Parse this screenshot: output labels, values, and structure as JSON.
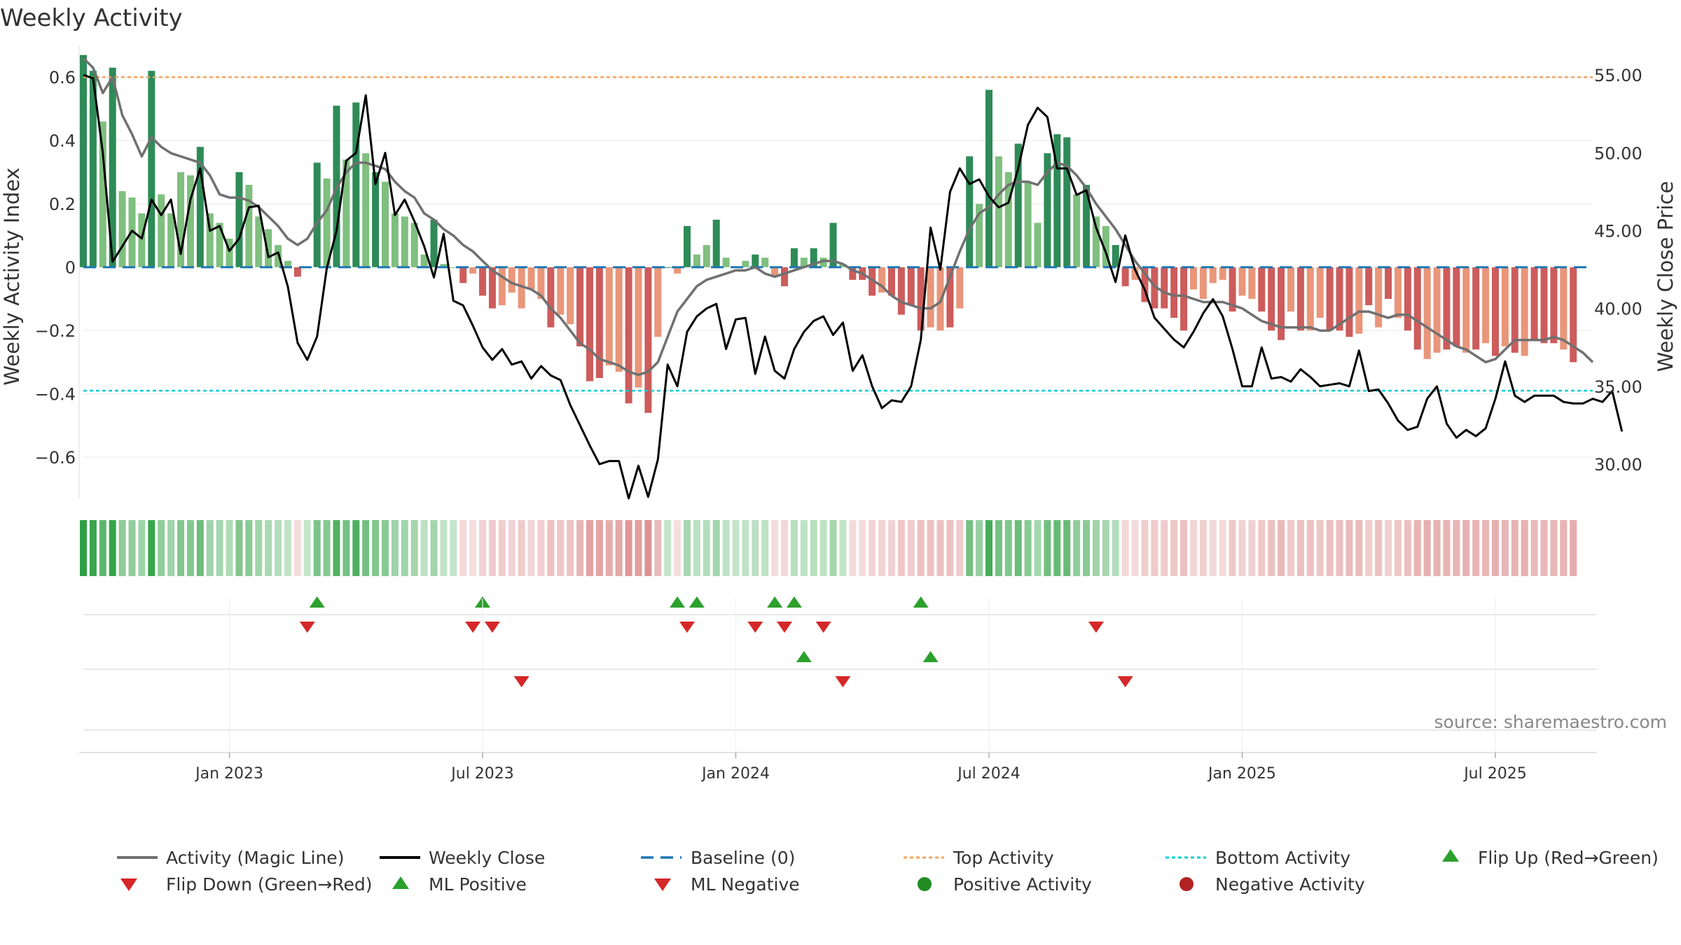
{
  "title": "Weekly Activity",
  "source": "source: sharemaestro.com",
  "colors": {
    "strong_green": "#2e8b57",
    "light_green": "#7fbf7f",
    "strong_red": "#cd5c5c",
    "light_red": "#e9967a",
    "magic_line": "#707070",
    "close_line": "#000000",
    "baseline": "#1f77b4",
    "top": "#f4a460",
    "bottom": "#00ced1",
    "flip_up": "#2ca02c",
    "flip_down": "#d62728",
    "pos_dot": "#228b22",
    "neg_dot": "#b22222"
  },
  "chart_data": {
    "type": "bar+line",
    "title": "Weekly Activity",
    "ylabel": "Weekly Activity Index",
    "y2label": "Weekly Close Price",
    "ylim": [
      -0.73,
      0.7
    ],
    "y2lim": [
      27.8,
      56.9
    ],
    "yticks": [
      0.6,
      0.4,
      0.2,
      0,
      -0.2,
      -0.4,
      -0.6
    ],
    "ytick_labels": [
      "0.6",
      "0.4",
      "0.2",
      "0",
      "−0.2",
      "−0.4",
      "−0.6"
    ],
    "y2ticks": [
      55,
      50,
      45,
      40,
      35,
      30
    ],
    "y2tick_labels": [
      "55.00",
      "50.00",
      "45.00",
      "40.00",
      "35.00",
      "30.00"
    ],
    "x_start_index": 0,
    "week_count": 156,
    "xtick_week_index": [
      15,
      41,
      67,
      93,
      119,
      145
    ],
    "xtick_labels": [
      "Jan 2023",
      "Jul 2023",
      "Jan 2024",
      "Jul 2024",
      "Jan 2025",
      "Jul 2025"
    ],
    "top_activity": 0.6,
    "bottom_activity": -0.39,
    "baseline": 0,
    "activity": [
      0.67,
      0.62,
      0.46,
      0.63,
      0.24,
      0.22,
      0.17,
      0.62,
      0.23,
      0.17,
      0.3,
      0.29,
      0.38,
      0.17,
      0.14,
      0.09,
      0.3,
      0.26,
      0.16,
      0.12,
      0.07,
      0.02,
      -0.03,
      0,
      0.33,
      0.28,
      0.51,
      0.34,
      0.52,
      0.36,
      0.3,
      0.27,
      0.17,
      0.16,
      0.14,
      0.04,
      0.15,
      0.01,
      0,
      -0.05,
      -0.02,
      -0.09,
      -0.13,
      -0.12,
      -0.08,
      -0.13,
      -0.07,
      -0.1,
      -0.19,
      -0.15,
      -0.18,
      -0.25,
      -0.36,
      -0.35,
      -0.31,
      -0.33,
      -0.43,
      -0.38,
      -0.46,
      -0.22,
      0.0,
      -0.02,
      0.13,
      0.04,
      0.07,
      0.15,
      0.03,
      0.0,
      0.02,
      0.04,
      0.03,
      -0.03,
      -0.06,
      0.06,
      0.03,
      0.06,
      0.03,
      0.14,
      0.01,
      -0.04,
      -0.04,
      -0.09,
      -0.08,
      -0.09,
      -0.15,
      -0.12,
      -0.2,
      -0.19,
      -0.2,
      -0.19,
      -0.13,
      0.35,
      0.2,
      0.56,
      0.35,
      0.3,
      0.39,
      0.27,
      0.14,
      0.36,
      0.42,
      0.41,
      0.23,
      0.26,
      0.16,
      0.13,
      0.07,
      -0.06,
      -0.04,
      -0.11,
      -0.13,
      -0.13,
      -0.16,
      -0.2,
      -0.07,
      -0.1,
      -0.05,
      -0.04,
      -0.14,
      -0.09,
      -0.1,
      -0.14,
      -0.2,
      -0.23,
      -0.14,
      -0.2,
      -0.2,
      -0.16,
      -0.2,
      -0.2,
      -0.22,
      -0.21,
      -0.12,
      -0.19,
      -0.1,
      -0.16,
      -0.2,
      -0.26,
      -0.29,
      -0.27,
      -0.26,
      -0.25,
      -0.27,
      -0.26,
      -0.24,
      -0.28,
      -0.25,
      -0.27,
      -0.28,
      -0.23,
      -0.24,
      -0.24,
      -0.26,
      -0.3
    ],
    "activity_style": [
      2,
      2,
      1,
      2,
      1,
      1,
      1,
      2,
      1,
      1,
      1,
      1,
      2,
      1,
      1,
      1,
      2,
      1,
      1,
      1,
      1,
      1,
      2,
      1,
      2,
      1,
      2,
      1,
      2,
      1,
      2,
      1,
      1,
      1,
      1,
      1,
      2,
      1,
      1,
      2,
      1,
      2,
      2,
      1,
      1,
      1,
      1,
      1,
      2,
      1,
      1,
      2,
      2,
      2,
      1,
      1,
      2,
      1,
      2,
      1,
      2,
      1,
      2,
      1,
      1,
      2,
      1,
      1,
      1,
      2,
      1,
      1,
      2,
      2,
      1,
      2,
      1,
      2,
      1,
      2,
      2,
      2,
      1,
      2,
      2,
      2,
      2,
      1,
      1,
      2,
      1,
      2,
      1,
      2,
      1,
      1,
      2,
      1,
      1,
      2,
      2,
      2,
      1,
      2,
      1,
      1,
      2,
      2,
      1,
      2,
      2,
      2,
      2,
      2,
      1,
      1,
      1,
      1,
      2,
      1,
      1,
      2,
      2,
      2,
      1,
      2,
      1,
      1,
      2,
      2,
      2,
      1,
      2,
      1,
      2,
      1,
      2,
      2,
      1,
      1,
      2,
      2,
      1,
      2,
      1,
      2,
      1,
      2,
      1,
      2,
      2,
      2,
      1,
      2,
      2,
      2
    ],
    "magic_line": [
      0.66,
      0.63,
      0.55,
      0.6,
      0.48,
      0.42,
      0.35,
      0.41,
      0.38,
      0.36,
      0.35,
      0.34,
      0.33,
      0.29,
      0.23,
      0.22,
      0.22,
      0.21,
      0.19,
      0.16,
      0.13,
      0.09,
      0.07,
      0.09,
      0.14,
      0.18,
      0.25,
      0.3,
      0.33,
      0.33,
      0.32,
      0.31,
      0.27,
      0.24,
      0.22,
      0.17,
      0.15,
      0.12,
      0.1,
      0.07,
      0.05,
      0.02,
      -0.01,
      -0.03,
      -0.05,
      -0.06,
      -0.07,
      -0.09,
      -0.13,
      -0.16,
      -0.2,
      -0.24,
      -0.26,
      -0.29,
      -0.3,
      -0.31,
      -0.33,
      -0.34,
      -0.33,
      -0.3,
      -0.22,
      -0.14,
      -0.1,
      -0.06,
      -0.04,
      -0.03,
      -0.02,
      -0.01,
      -0.01,
      0.0,
      -0.02,
      -0.03,
      -0.02,
      -0.01,
      0.0,
      0.01,
      0.02,
      0.02,
      0.01,
      -0.01,
      -0.02,
      -0.04,
      -0.06,
      -0.09,
      -0.11,
      -0.12,
      -0.13,
      -0.13,
      -0.11,
      -0.03,
      0.05,
      0.12,
      0.17,
      0.19,
      0.23,
      0.26,
      0.27,
      0.27,
      0.26,
      0.3,
      0.33,
      0.32,
      0.29,
      0.25,
      0.2,
      0.16,
      0.12,
      0.07,
      0.02,
      -0.02,
      -0.06,
      -0.08,
      -0.09,
      -0.09,
      -0.1,
      -0.11,
      -0.11,
      -0.11,
      -0.12,
      -0.13,
      -0.15,
      -0.17,
      -0.18,
      -0.19,
      -0.19,
      -0.19,
      -0.19,
      -0.2,
      -0.2,
      -0.18,
      -0.16,
      -0.14,
      -0.14,
      -0.15,
      -0.16,
      -0.15,
      -0.15,
      -0.17,
      -0.19,
      -0.21,
      -0.23,
      -0.25,
      -0.26,
      -0.28,
      -0.3,
      -0.29,
      -0.26,
      -0.23,
      -0.23,
      -0.23,
      -0.23,
      -0.22,
      -0.23,
      -0.25,
      -0.27,
      -0.3
    ],
    "weekly_close": [
      55.0,
      54.8,
      50.0,
      43.0,
      44.0,
      45.0,
      44.5,
      47.0,
      46.0,
      47.0,
      43.5,
      47.0,
      49.0,
      45.0,
      45.3,
      43.7,
      44.5,
      46.5,
      46.6,
      43.3,
      43.6,
      41.4,
      37.8,
      36.7,
      38.2,
      42.6,
      45.0,
      49.5,
      50.0,
      53.7,
      48.0,
      50.0,
      46.0,
      47.0,
      45.6,
      44.0,
      42.0,
      44.8,
      40.5,
      40.2,
      38.9,
      37.5,
      36.7,
      37.4,
      36.4,
      36.6,
      35.5,
      36.3,
      35.7,
      35.4,
      33.8,
      32.5,
      31.2,
      30.0,
      30.2,
      30.2,
      27.8,
      29.9,
      27.9,
      30.3,
      36.4,
      35.0,
      38.5,
      39.5,
      40.0,
      40.3,
      37.4,
      39.3,
      39.4,
      35.8,
      38.2,
      36.0,
      35.5,
      37.4,
      38.5,
      39.2,
      39.5,
      38.3,
      39.1,
      36.0,
      37.0,
      35.0,
      33.6,
      34.1,
      34.0,
      35.0,
      38.0,
      45.2,
      42.5,
      47.5,
      49.0,
      48.0,
      48.3,
      47.2,
      46.5,
      46.8,
      49.0,
      51.8,
      52.9,
      52.3,
      49.0,
      49.0,
      47.3,
      47.6,
      45.2,
      43.6,
      41.7,
      44.7,
      42.5,
      41.2,
      39.4,
      38.7,
      38.0,
      37.5,
      38.5,
      39.7,
      40.6,
      39.5,
      37.4,
      35.0,
      35.0,
      37.5,
      35.5,
      35.6,
      35.3,
      36.1,
      35.6,
      35.0,
      35.1,
      35.2,
      35.0,
      37.3,
      34.7,
      34.8,
      33.9,
      32.8,
      32.2,
      32.4,
      34.2,
      35.0,
      32.6,
      31.7,
      32.2,
      31.8,
      32.3,
      34.2,
      36.6,
      34.4,
      34.0,
      34.4,
      34.4,
      34.4,
      34.0,
      33.9,
      33.9,
      34.2,
      34.0,
      34.7,
      32.1
    ],
    "flip_up_weeks": [
      24,
      41,
      61,
      63,
      71,
      73,
      86
    ],
    "flip_down_weeks": [
      23,
      40,
      42,
      62,
      69,
      72,
      76,
      104
    ],
    "ml_positive_weeks": [
      74,
      87
    ],
    "ml_negative_weeks": [
      45,
      78,
      107
    ],
    "legend": [
      "Activity (Magic Line)",
      "Weekly Close",
      "Baseline (0)",
      "Top Activity",
      "Bottom Activity",
      "Flip Up (Red→Green)",
      "Flip Down (Green→Red)",
      "ML Positive",
      "ML Negative",
      "Positive Activity",
      "Negative Activity"
    ],
    "legend_placement": "bottom"
  }
}
